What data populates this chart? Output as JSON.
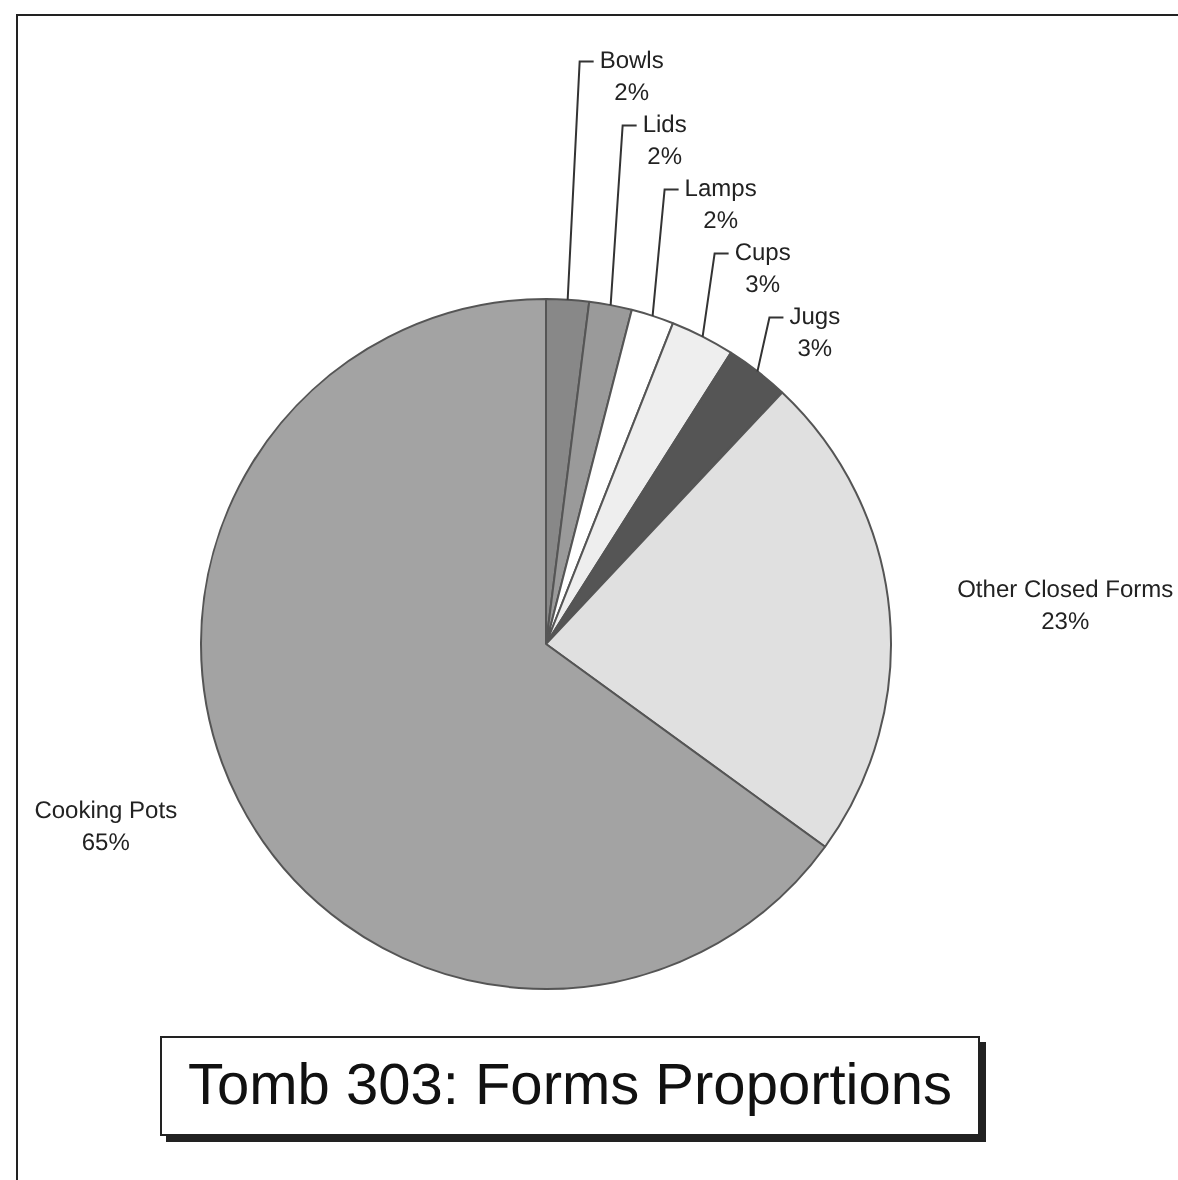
{
  "chart_data": {
    "type": "pie",
    "title": "Tomb 303: Forms Proportions",
    "categories": [
      "Bowls",
      "Lids",
      "Lamps",
      "Cups",
      "Jugs",
      "Other Closed Forms",
      "Cooking Pots"
    ],
    "values": [
      2,
      2,
      2,
      3,
      3,
      23,
      65
    ],
    "value_labels": [
      "2%",
      "2%",
      "2%",
      "3%",
      "3%",
      "23%",
      "65%"
    ],
    "colors": [
      "#888888",
      "#9a9a9a",
      "#ffffff",
      "#eeeeee",
      "#555555",
      "#e0e0e0",
      "#a3a3a3"
    ]
  }
}
